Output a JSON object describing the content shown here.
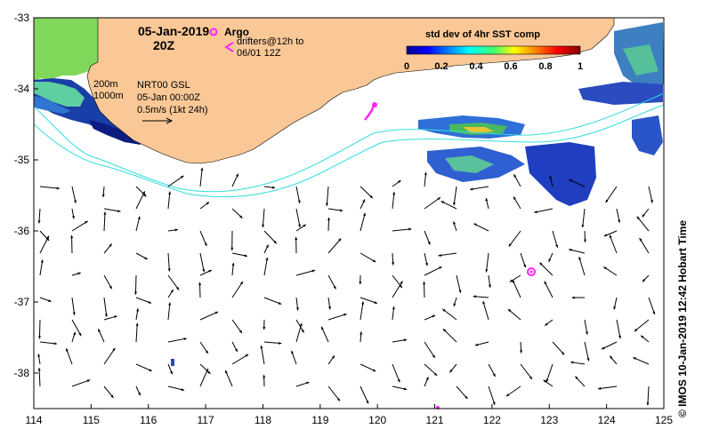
{
  "title": {
    "date": "05-Jan-2019",
    "time": "20Z"
  },
  "legend": {
    "argo_label": "Argo",
    "drifter_label": "drifters@12h to 06/01 12Z",
    "contour_label_1": "200m",
    "contour_label_2": "1000m",
    "current_line_1": "NRT00 GSL",
    "current_line_2": "05-Jan 00:00Z",
    "current_line_3": "0.5m/s (1kt 24h)"
  },
  "colorbar": {
    "title": "std dev of 4hr SST comp",
    "ticks": [
      "0",
      "0.2",
      "0.4",
      "0.6",
      "0.8",
      "1"
    ],
    "range": [
      0,
      1
    ]
  },
  "credit": "© IMOS 10-Jan-2019 12:42 Hobart Time",
  "axes": {
    "lon_ticks": [
      "114",
      "115",
      "116",
      "117",
      "118",
      "119",
      "120",
      "121",
      "122",
      "123",
      "124",
      "125"
    ],
    "lat_ticks": [
      "-33",
      "-34",
      "-35",
      "-36",
      "-37",
      "-38"
    ],
    "lon_range": [
      114,
      125
    ],
    "lat_range": [
      -38.5,
      -33
    ]
  },
  "colors": {
    "land": "#f9c896",
    "contour": "#33dddd",
    "argo": "#ff22ff",
    "arrow": "#000000"
  },
  "argo_float": {
    "lon": 122.67,
    "lat": -36.6
  }
}
